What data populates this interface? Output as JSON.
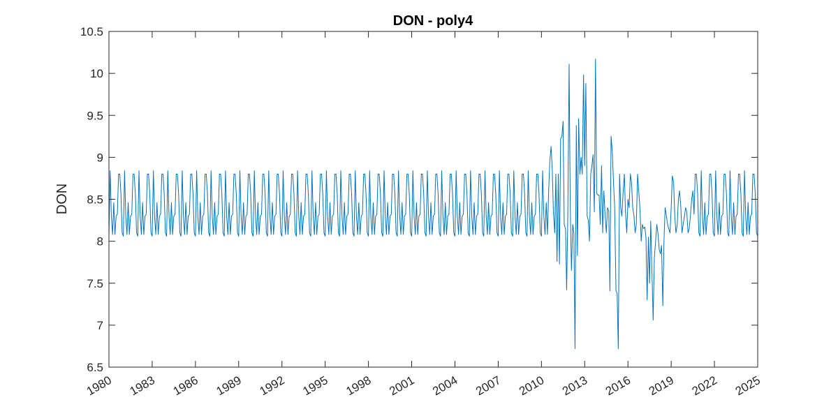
{
  "chart_data": {
    "type": "line",
    "title": "DON - poly4",
    "xlabel": "",
    "ylabel": "DON",
    "xlim": [
      1980,
      2025
    ],
    "ylim": [
      6.5,
      10.5
    ],
    "xticks": [
      1980,
      1983,
      1986,
      1989,
      1992,
      1995,
      1998,
      2001,
      2004,
      2007,
      2010,
      2013,
      2016,
      2019,
      2022,
      2025
    ],
    "xtick_labels": [
      "1980",
      "1983",
      "1986",
      "1989",
      "1992",
      "1995",
      "1998",
      "2001",
      "2004",
      "2007",
      "2010",
      "2013",
      "2016",
      "2019",
      "2022",
      "2025"
    ],
    "yticks": [
      6.5,
      7,
      7.5,
      8,
      8.5,
      9,
      9.5,
      10,
      10.5
    ],
    "ytick_labels": [
      "6.5",
      "7",
      "7.5",
      "8",
      "8.5",
      "9",
      "9.5",
      "10",
      "10.5"
    ],
    "grid": false,
    "line_color": "#0072BD",
    "axis_color": "#262626",
    "seasonal_cycle": [
      8.06,
      8.84,
      8.3,
      8.08,
      8.46,
      8.08,
      8.3,
      8.32,
      8.8,
      8.8,
      8.56,
      8.1
    ],
    "series": [
      {
        "name": "",
        "x": [
          2010.5,
          2010.58,
          2010.67,
          2010.75,
          2010.83,
          2010.92,
          2011.0,
          2011.08,
          2011.17,
          2011.25,
          2011.33,
          2011.42,
          2011.5,
          2011.58,
          2011.67,
          2011.75,
          2011.83,
          2011.92,
          2012.0,
          2012.08,
          2012.17,
          2012.25,
          2012.33,
          2012.42,
          2012.5,
          2012.58,
          2012.67,
          2012.75,
          2012.83,
          2012.92,
          2013.0,
          2013.08,
          2013.17,
          2013.25,
          2013.33,
          2013.42,
          2013.5,
          2013.58,
          2013.67,
          2013.75,
          2013.83,
          2013.92,
          2014.0,
          2014.08,
          2014.17,
          2014.25,
          2014.33,
          2014.42,
          2014.5,
          2014.58,
          2014.67,
          2014.75,
          2014.83,
          2014.92,
          2015.0,
          2015.08,
          2015.17,
          2015.25,
          2015.33,
          2015.42,
          2015.5,
          2015.58,
          2015.67,
          2015.75,
          2015.83,
          2015.92,
          2016.0,
          2016.08,
          2016.17,
          2016.25,
          2016.33,
          2016.42,
          2016.5,
          2016.58,
          2016.67,
          2016.75,
          2016.83,
          2016.92,
          2017.0,
          2017.08,
          2017.17,
          2017.25,
          2017.33,
          2017.42,
          2017.5,
          2017.58,
          2017.67,
          2017.75,
          2017.83,
          2017.92,
          2018.0,
          2018.08,
          2018.17,
          2018.25,
          2018.33,
          2018.42,
          2018.5,
          2018.58,
          2018.67,
          2018.75,
          2018.83,
          2018.92,
          2019.0,
          2019.08,
          2019.17,
          2019.25,
          2019.33,
          2019.42,
          2019.5,
          2019.58,
          2019.67,
          2019.75,
          2019.83,
          2019.92,
          2020.0,
          2020.08,
          2020.17,
          2020.25,
          2020.33,
          2020.42,
          2020.5
        ],
        "y": [
          8.6,
          8.95,
          9.13,
          8.85,
          8.35,
          8.1,
          8.8,
          7.76,
          8.8,
          7.73,
          9.22,
          9.25,
          9.43,
          8.2,
          8.15,
          7.42,
          8.3,
          10.11,
          8.4,
          7.65,
          8.2,
          8.1,
          6.72,
          9.38,
          7.83,
          9.46,
          8.8,
          9.0,
          8.8,
          9.98,
          8.9,
          9.88,
          8.3,
          8.25,
          8.0,
          8.8,
          8.9,
          9.03,
          8.35,
          10.17,
          8.57,
          8.55,
          8.55,
          8.2,
          8.9,
          8.1,
          8.6,
          8.3,
          8.1,
          8.4,
          8.36,
          7.41,
          9.25,
          9.05,
          8.7,
          8.4,
          7.41,
          7.38,
          6.72,
          8.8,
          8.4,
          8.3,
          8.6,
          8.8,
          8.35,
          8.1,
          8.5,
          8.4,
          8.8,
          8.7,
          8.4,
          8.3,
          8.1,
          8.2,
          8.8,
          8.6,
          8.4,
          8.0,
          8.2,
          8.15,
          8.17,
          8.05,
          7.3,
          8.05,
          7.5,
          8.24,
          7.6,
          7.06,
          7.8,
          8.0,
          8.2,
          8.1,
          7.9,
          7.85,
          7.95,
          7.23,
          8.0,
          8.4,
          8.3,
          8.2,
          8.15,
          8.1,
          8.4,
          8.78,
          8.7,
          8.3,
          8.1,
          8.2,
          8.5,
          8.6,
          8.4,
          8.1,
          8.2,
          8.3,
          8.4,
          8.35,
          8.1,
          8.15,
          8.3,
          8.5,
          8.6
        ]
      }
    ]
  }
}
